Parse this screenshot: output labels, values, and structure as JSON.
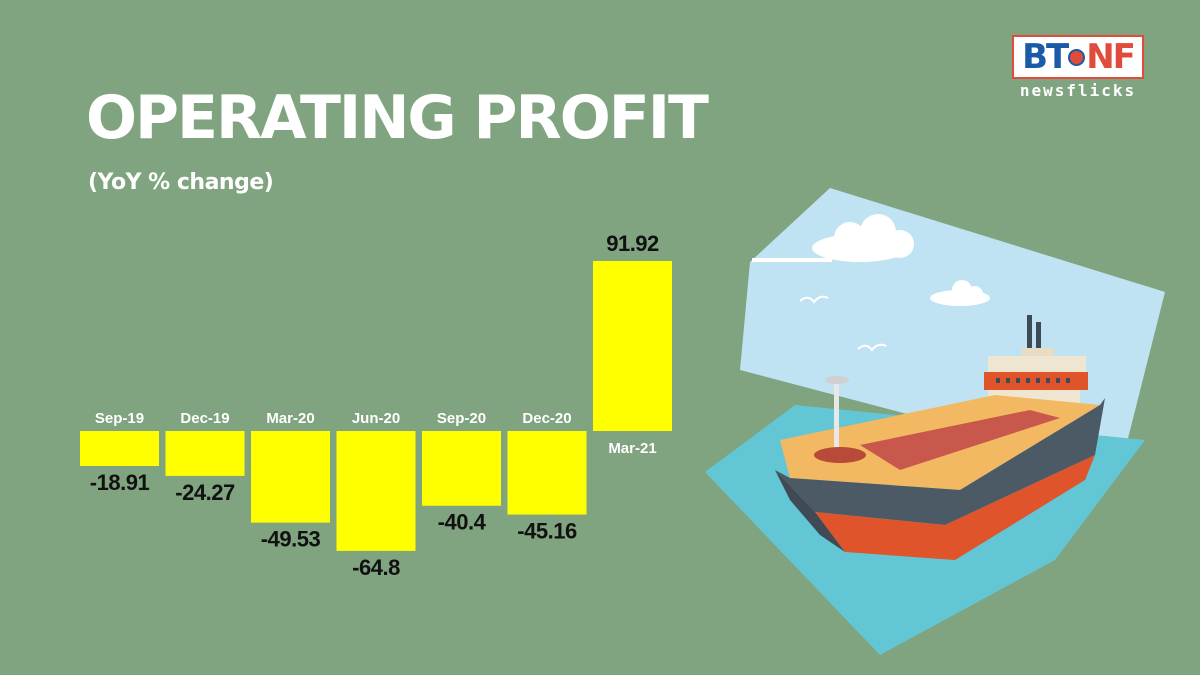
{
  "header": {
    "title": "OPERATING PROFIT",
    "subtitle": "(YoY % change)"
  },
  "logo": {
    "main_left": "BT",
    "main_right": "NF",
    "tagline": "newsflicks"
  },
  "chart_data": {
    "type": "bar",
    "categories": [
      "Sep-19",
      "Dec-19",
      "Mar-20",
      "Jun-20",
      "Sep-20",
      "Dec-20",
      "Mar-21"
    ],
    "values": [
      -18.91,
      -24.27,
      -49.53,
      -64.8,
      -40.4,
      -45.16,
      91.92
    ],
    "value_labels": [
      "-18.91",
      "-24.27",
      "-49.53",
      "-64.8",
      "-40.4",
      "-45.16",
      "91.92"
    ],
    "title": "OPERATING PROFIT",
    "subtitle": "(YoY % change)",
    "bar_color": "#ffff00",
    "grid": false
  },
  "colors": {
    "background": "#7fa47f",
    "bar": "#ffff00",
    "sky": "#bfe3f2",
    "water": "#63c6d4",
    "hull_top": "#4c5a66",
    "hull_bottom": "#e0542b",
    "deck": "#f3b862"
  }
}
